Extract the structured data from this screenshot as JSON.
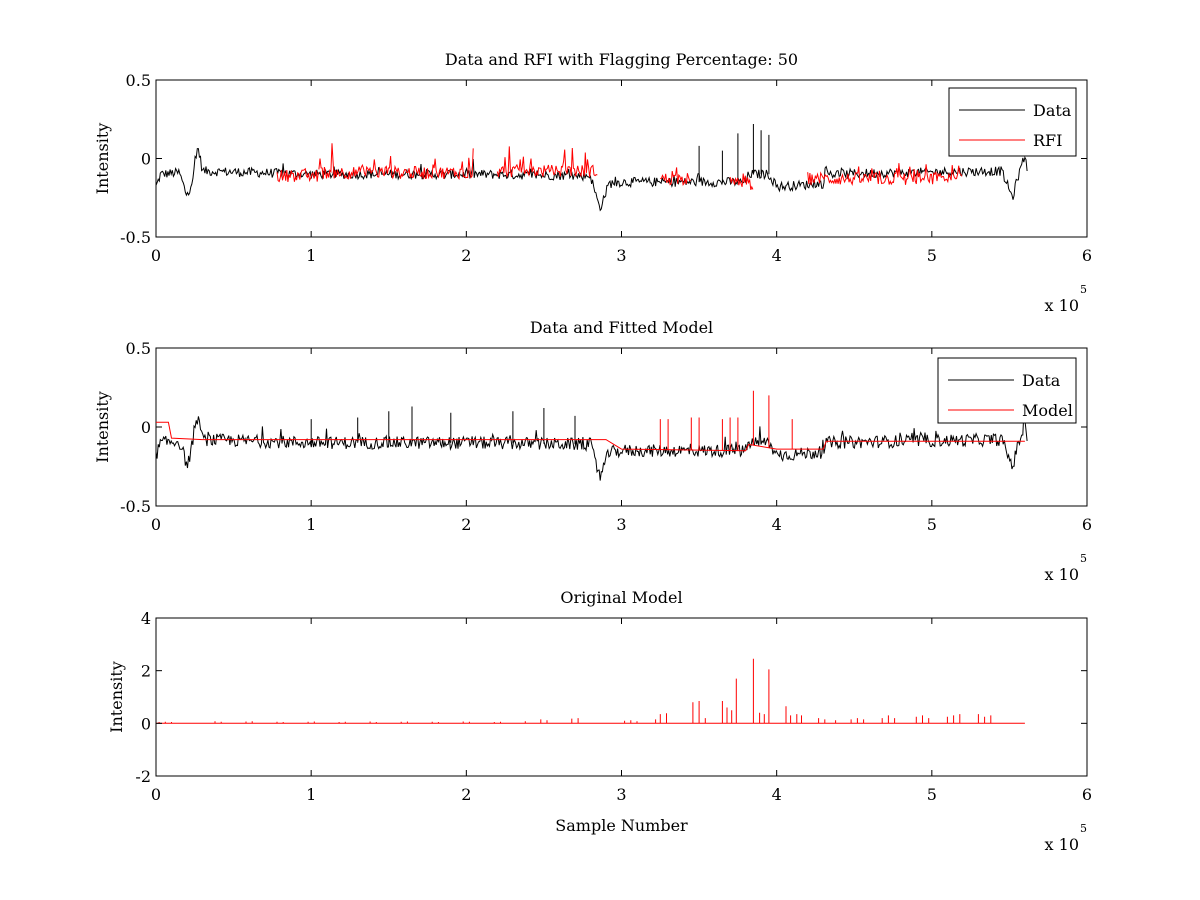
{
  "chart_data": [
    {
      "type": "line",
      "title": "Data and RFI with Flagging Percentage: 50",
      "xlabel": "",
      "ylabel": "Intensity",
      "xlim": [
        0,
        600000
      ],
      "ylim": [
        -0.5,
        0.5
      ],
      "xticks": [
        0,
        100000,
        200000,
        300000,
        400000,
        500000,
        600000
      ],
      "xtick_labels": [
        "0",
        "1",
        "2",
        "3",
        "4",
        "5",
        "6"
      ],
      "yticks": [
        -0.5,
        0,
        0.5
      ],
      "ytick_labels": [
        "-0.5",
        "0",
        "0.5"
      ],
      "x_multiplier": {
        "base": "x 10",
        "exponent": "5"
      },
      "grid": false,
      "legend_position": "top-right",
      "series": [
        {
          "name": "Data",
          "color": "#000000",
          "style": "noisy baseline",
          "baseline": [
            [
              0,
              -0.18
            ],
            [
              3000,
              -0.1
            ],
            [
              15000,
              -0.09
            ],
            [
              20000,
              -0.24
            ],
            [
              24000,
              -0.12
            ],
            [
              27000,
              0.08
            ],
            [
              30000,
              -0.08
            ],
            [
              100000,
              -0.1
            ],
            [
              200000,
              -0.1
            ],
            [
              280000,
              -0.11
            ],
            [
              286000,
              -0.32
            ],
            [
              292000,
              -0.16
            ],
            [
              300000,
              -0.15
            ],
            [
              380000,
              -0.15
            ],
            [
              382000,
              -0.1
            ],
            [
              395000,
              -0.1
            ],
            [
              400000,
              -0.18
            ],
            [
              430000,
              -0.16
            ],
            [
              432000,
              -0.1
            ],
            [
              480000,
              -0.09
            ],
            [
              545000,
              -0.08
            ],
            [
              552000,
              -0.25
            ],
            [
              556000,
              -0.1
            ],
            [
              560000,
              0.02
            ],
            [
              562000,
              -0.1
            ]
          ],
          "noise": 0.03,
          "spikes": [
            [
              350000,
              0.08
            ],
            [
              365000,
              0.05
            ],
            [
              375000,
              0.16
            ],
            [
              385000,
              0.22
            ],
            [
              390000,
              0.18
            ],
            [
              395000,
              0.15
            ]
          ]
        },
        {
          "name": "RFI",
          "color": "#ff0000",
          "style": "noisy segments",
          "segments": [
            [
              78000,
              105000,
              -0.11,
              0.03
            ],
            [
              105000,
              205000,
              -0.09,
              0.16
            ],
            [
              220000,
              285000,
              -0.08,
              0.14
            ],
            [
              325000,
              345000,
              -0.13,
              0.05
            ],
            [
              370000,
              385000,
              -0.16,
              0.06
            ],
            [
              420000,
              520000,
              -0.13,
              0.08
            ]
          ]
        }
      ]
    },
    {
      "type": "line",
      "title": "Data and Fitted Model",
      "xlabel": "",
      "ylabel": "Intensity",
      "xlim": [
        0,
        600000
      ],
      "ylim": [
        -0.5,
        0.5
      ],
      "xticks": [
        0,
        100000,
        200000,
        300000,
        400000,
        500000,
        600000
      ],
      "xtick_labels": [
        "0",
        "1",
        "2",
        "3",
        "4",
        "5",
        "6"
      ],
      "yticks": [
        -0.5,
        0,
        0.5
      ],
      "ytick_labels": [
        "-0.5",
        "0",
        "0.5"
      ],
      "x_multiplier": {
        "base": "x 10",
        "exponent": "5"
      },
      "grid": false,
      "legend_position": "top-right",
      "series": [
        {
          "name": "Data",
          "color": "#000000",
          "style": "noisy baseline",
          "baseline": [
            [
              0,
              -0.18
            ],
            [
              3000,
              -0.1
            ],
            [
              15000,
              -0.09
            ],
            [
              20000,
              -0.24
            ],
            [
              24000,
              -0.12
            ],
            [
              27000,
              0.08
            ],
            [
              30000,
              -0.08
            ],
            [
              100000,
              -0.1
            ],
            [
              200000,
              -0.1
            ],
            [
              280000,
              -0.11
            ],
            [
              286000,
              -0.32
            ],
            [
              292000,
              -0.16
            ],
            [
              300000,
              -0.15
            ],
            [
              380000,
              -0.15
            ],
            [
              382000,
              -0.1
            ],
            [
              395000,
              -0.1
            ],
            [
              400000,
              -0.18
            ],
            [
              430000,
              -0.16
            ],
            [
              432000,
              -0.1
            ],
            [
              480000,
              -0.09
            ],
            [
              545000,
              -0.08
            ],
            [
              552000,
              -0.25
            ],
            [
              556000,
              -0.1
            ],
            [
              560000,
              0.02
            ],
            [
              562000,
              -0.1
            ]
          ],
          "noise": 0.04,
          "spikes": [
            [
              100000,
              0.05
            ],
            [
              130000,
              0.06
            ],
            [
              150000,
              0.1
            ],
            [
              165000,
              0.13
            ],
            [
              190000,
              0.09
            ],
            [
              230000,
              0.1
            ],
            [
              250000,
              0.12
            ],
            [
              270000,
              0.07
            ]
          ]
        },
        {
          "name": "Model",
          "color": "#ff0000",
          "style": "smooth line",
          "baseline": [
            [
              0,
              0.03
            ],
            [
              8000,
              0.03
            ],
            [
              10000,
              -0.07
            ],
            [
              30000,
              -0.08
            ],
            [
              100000,
              -0.08
            ],
            [
              290000,
              -0.08
            ],
            [
              300000,
              -0.14
            ],
            [
              380000,
              -0.15
            ],
            [
              382000,
              -0.11
            ],
            [
              400000,
              -0.14
            ],
            [
              430000,
              -0.14
            ],
            [
              432000,
              -0.09
            ],
            [
              560000,
              -0.09
            ]
          ],
          "spikes": [
            [
              325000,
              0.05
            ],
            [
              330000,
              0.05
            ],
            [
              345000,
              0.06
            ],
            [
              350000,
              0.06
            ],
            [
              365000,
              0.05
            ],
            [
              370000,
              0.06
            ],
            [
              375000,
              0.06
            ],
            [
              385000,
              0.23
            ],
            [
              395000,
              0.2
            ],
            [
              410000,
              0.05
            ]
          ]
        }
      ]
    },
    {
      "type": "line",
      "title": "Original Model",
      "xlabel": "Sample Number",
      "ylabel": "Intensity",
      "xlim": [
        0,
        600000
      ],
      "ylim": [
        -2,
        4
      ],
      "xticks": [
        0,
        100000,
        200000,
        300000,
        400000,
        500000,
        600000
      ],
      "xtick_labels": [
        "0",
        "1",
        "2",
        "3",
        "4",
        "5",
        "6"
      ],
      "yticks": [
        -2,
        0,
        2,
        4
      ],
      "ytick_labels": [
        "-2",
        "0",
        "2",
        "4"
      ],
      "x_multiplier": {
        "base": "x 10",
        "exponent": "5"
      },
      "grid": false,
      "series": [
        {
          "name": "",
          "color": "#ff0000",
          "style": "spikes",
          "x_end": 560000,
          "spikes": [
            [
              2000,
              0.05
            ],
            [
              6000,
              0.06
            ],
            [
              10000,
              0.05
            ],
            [
              38000,
              0.08
            ],
            [
              42000,
              0.06
            ],
            [
              58000,
              0.07
            ],
            [
              62000,
              0.08
            ],
            [
              78000,
              0.06
            ],
            [
              82000,
              0.05
            ],
            [
              98000,
              0.06
            ],
            [
              102000,
              0.07
            ],
            [
              118000,
              0.05
            ],
            [
              122000,
              0.06
            ],
            [
              138000,
              0.07
            ],
            [
              142000,
              0.05
            ],
            [
              158000,
              0.06
            ],
            [
              162000,
              0.07
            ],
            [
              178000,
              0.06
            ],
            [
              182000,
              0.05
            ],
            [
              198000,
              0.07
            ],
            [
              202000,
              0.06
            ],
            [
              218000,
              0.05
            ],
            [
              222000,
              0.06
            ],
            [
              238000,
              0.08
            ],
            [
              248000,
              0.15
            ],
            [
              252000,
              0.12
            ],
            [
              268000,
              0.18
            ],
            [
              272000,
              0.2
            ],
            [
              302000,
              0.1
            ],
            [
              306000,
              0.12
            ],
            [
              310000,
              0.08
            ],
            [
              322000,
              0.15
            ],
            [
              325000,
              0.35
            ],
            [
              329000,
              0.38
            ],
            [
              346000,
              0.8
            ],
            [
              350000,
              0.85
            ],
            [
              354000,
              0.2
            ],
            [
              365000,
              0.85
            ],
            [
              368000,
              0.6
            ],
            [
              371000,
              0.5
            ],
            [
              374000,
              1.7
            ],
            [
              385000,
              2.45
            ],
            [
              389000,
              0.4
            ],
            [
              392000,
              0.35
            ],
            [
              395000,
              2.05
            ],
            [
              406000,
              0.65
            ],
            [
              409000,
              0.3
            ],
            [
              413000,
              0.35
            ],
            [
              416000,
              0.3
            ],
            [
              427000,
              0.2
            ],
            [
              431000,
              0.15
            ],
            [
              438000,
              0.12
            ],
            [
              448000,
              0.15
            ],
            [
              452000,
              0.2
            ],
            [
              456000,
              0.15
            ],
            [
              468000,
              0.2
            ],
            [
              472000,
              0.3
            ],
            [
              476000,
              0.2
            ],
            [
              490000,
              0.25
            ],
            [
              494000,
              0.3
            ],
            [
              498000,
              0.2
            ],
            [
              510000,
              0.25
            ],
            [
              514000,
              0.3
            ],
            [
              518000,
              0.35
            ],
            [
              530000,
              0.35
            ],
            [
              534000,
              0.25
            ],
            [
              538000,
              0.3
            ]
          ]
        }
      ]
    }
  ]
}
